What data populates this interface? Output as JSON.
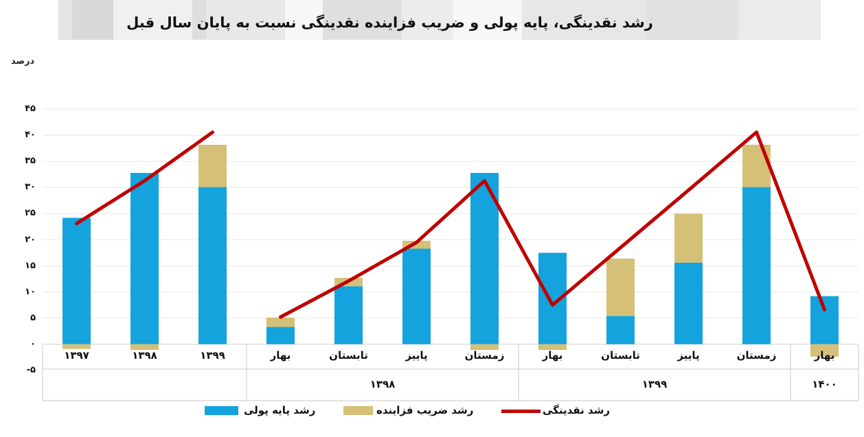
{
  "title": "رشد نقدینگی، پایه پولی و ضریب فزاینده نقدینگی نسبت به پایان سال قبل",
  "unit_label": "درصد",
  "colors": {
    "monetary_base_blue": "#14A3DC",
    "multiplier_tan": "#D5C077",
    "liquidity_red": "#C00000",
    "gridline": "#EDEDED",
    "band_border": "#D2D2D2",
    "text": "#111111"
  },
  "legend": [
    {
      "label": "رشد پایه پولی",
      "marker": "bar",
      "color_key": "monetary_base_blue"
    },
    {
      "label": "رشد ضریب فزاینده",
      "marker": "bar",
      "color_key": "multiplier_tan"
    },
    {
      "label": "رشد نقدینگی",
      "marker": "line",
      "color_key": "liquidity_red"
    }
  ],
  "chart_data": {
    "type": "combo: stacked bar + line",
    "title": "رشد نقدینگی، پایه پولی و ضریب فزاینده نقدینگی نسبت به پایان سال قبل",
    "ylabel": "درصد",
    "ylim": [
      -5,
      45
    ],
    "grid": "horizontal, light gray",
    "legend_position": "bottom",
    "yticks": [
      {
        "value": 45,
        "label": "۴۵"
      },
      {
        "value": 40,
        "label": "۴۰"
      },
      {
        "value": 35,
        "label": "۳۵"
      },
      {
        "value": 30,
        "label": "۳۰"
      },
      {
        "value": 25,
        "label": "۲۵"
      },
      {
        "value": 20,
        "label": "۲۰"
      },
      {
        "value": 15,
        "label": "۱۵"
      },
      {
        "value": 10,
        "label": "۱۰"
      },
      {
        "value": 5,
        "label": "۵"
      },
      {
        "value": 0,
        "label": "۰"
      },
      {
        "value": -5,
        "label": "-۵"
      }
    ],
    "groups": [
      {
        "label": "",
        "categories": [
          "۱۳۹۷",
          "۱۳۹۸",
          "۱۳۹۹"
        ]
      },
      {
        "label": "۱۳۹۸",
        "categories": [
          "بهار",
          "تابستان",
          "پاییز",
          "زمستان"
        ]
      },
      {
        "label": "۱۳۹۹",
        "categories": [
          "بهار",
          "تابستان",
          "پاییز",
          "زمستان"
        ]
      },
      {
        "label": "۱۴۰۰",
        "categories": [
          "بهار"
        ]
      }
    ],
    "series": [
      {
        "name": "رشد پایه پولی",
        "type": "bar",
        "color_key": "monetary_base_blue",
        "values": [
          24.2,
          32.8,
          30.1,
          3.3,
          11.1,
          18.3,
          32.8,
          17.5,
          5.4,
          15.6,
          30.1,
          9.2
        ]
      },
      {
        "name": "رشد ضریب فزاینده",
        "type": "bar",
        "color_key": "multiplier_tan",
        "values": [
          -0.9,
          -1.1,
          8.1,
          1.8,
          1.6,
          1.5,
          -1.1,
          -1.1,
          11.0,
          9.4,
          8.1,
          -2.4
        ]
      },
      {
        "name": "رشد نقدینگی",
        "type": "line",
        "color_key": "liquidity_red",
        "values": [
          23.1,
          31.3,
          40.6,
          5.2,
          12.1,
          19.5,
          31.3,
          7.5,
          18.5,
          29.5,
          40.6,
          6.6
        ],
        "segments": [
          [
            0,
            1,
            2
          ],
          [
            3,
            4,
            5,
            6,
            7,
            8,
            9,
            10,
            11
          ]
        ]
      }
    ]
  }
}
